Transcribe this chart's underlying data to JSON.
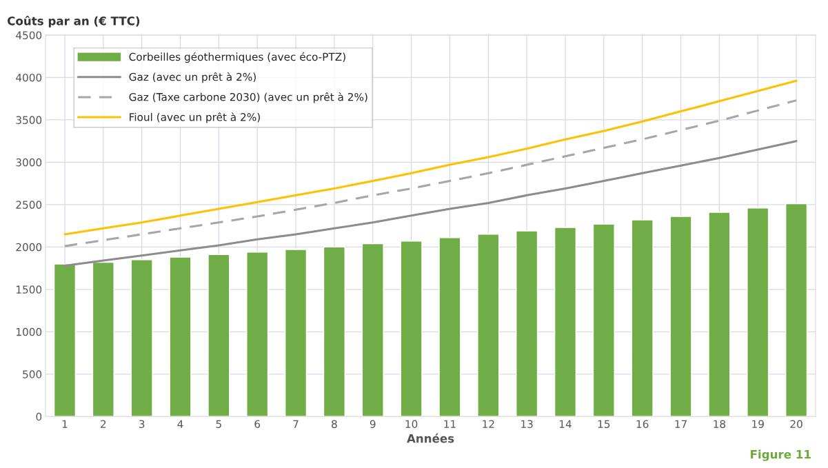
{
  "chart_data": {
    "type": "bar",
    "ylabel": "Coûts par an (€ TTC)",
    "xlabel": "Années",
    "categories": [
      "1",
      "2",
      "3",
      "4",
      "5",
      "6",
      "7",
      "8",
      "9",
      "10",
      "11",
      "12",
      "13",
      "14",
      "15",
      "16",
      "17",
      "18",
      "19",
      "20"
    ],
    "series": [
      {
        "name": "Corbeilles géothermiques (avec éco-PTZ)",
        "color": "#70ad47",
        "values": [
          1800,
          1820,
          1850,
          1880,
          1910,
          1940,
          1970,
          2000,
          2040,
          2070,
          2110,
          2150,
          2190,
          2230,
          2270,
          2320,
          2360,
          2410,
          2460,
          2510
        ]
      },
      {
        "name": "Gaz (avec un prêt à 2%)",
        "type": "line",
        "line_style": "solid",
        "color": "#8c8c8c",
        "values": [
          1780,
          1840,
          1900,
          1960,
          2020,
          2090,
          2150,
          2220,
          2290,
          2370,
          2450,
          2520,
          2610,
          2690,
          2780,
          2870,
          2960,
          3050,
          3150,
          3250
        ]
      },
      {
        "name": "Gaz (Taxe carbone 2030) (avec un prêt à 2%)",
        "type": "line",
        "line_style": "dashed",
        "color": "#a6a6a6",
        "values": [
          2010,
          2080,
          2150,
          2220,
          2290,
          2360,
          2440,
          2520,
          2610,
          2690,
          2780,
          2870,
          2970,
          3070,
          3170,
          3270,
          3380,
          3490,
          3610,
          3730
        ]
      },
      {
        "name": "Fioul (avec un prêt à 2%)",
        "type": "line",
        "line_style": "solid",
        "color": "#ffc000",
        "values": [
          2150,
          2220,
          2290,
          2370,
          2450,
          2530,
          2610,
          2690,
          2780,
          2870,
          2970,
          3060,
          3160,
          3270,
          3370,
          3480,
          3600,
          3720,
          3840,
          3960
        ]
      }
    ],
    "ylim": [
      0,
      4500
    ],
    "yticks": [
      0,
      500,
      1000,
      1500,
      2000,
      2500,
      3000,
      3500,
      4000,
      4500
    ],
    "grid": true,
    "legend": "top left",
    "annotations": [
      "Figure 11"
    ]
  }
}
